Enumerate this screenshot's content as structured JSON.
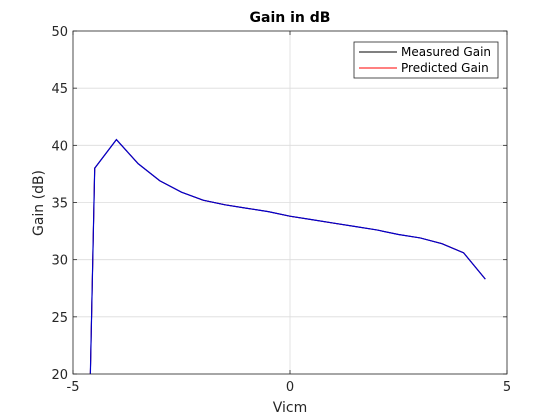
{
  "chart_data": {
    "type": "line",
    "title": "Gain in dB",
    "xlabel": "Vicm",
    "ylabel": "Gain (dB)",
    "xlim": [
      -5,
      5
    ],
    "ylim": [
      20,
      50
    ],
    "xticks": [
      -5,
      0,
      5
    ],
    "yticks": [
      20,
      25,
      30,
      35,
      40,
      45,
      50
    ],
    "grid": true,
    "legend_location": "top-right",
    "series": [
      {
        "name": "Measured Gain",
        "color": "#000000",
        "x": [
          -4.6,
          -4.5,
          -4.0,
          -3.5,
          -3.0,
          -2.5,
          -2.0,
          -1.5,
          -1.0,
          -0.5,
          0.0,
          0.5,
          1.0,
          1.5,
          2.0,
          2.5,
          3.0,
          3.5,
          4.0,
          4.5
        ],
        "y": [
          20.0,
          38.0,
          40.5,
          38.4,
          36.9,
          35.9,
          35.2,
          34.8,
          34.5,
          34.2,
          33.8,
          33.5,
          33.2,
          32.9,
          32.6,
          32.2,
          31.9,
          31.4,
          30.6,
          28.3
        ]
      },
      {
        "name": "Predicted Gain",
        "color": "#ff0000",
        "x": [
          -4.6,
          -4.5,
          -4.0,
          -3.5,
          -3.0,
          -2.5,
          -2.0,
          -1.5,
          -1.0,
          -0.5,
          0.0,
          0.5,
          1.0,
          1.5,
          2.0,
          2.5,
          3.0,
          3.5,
          4.0,
          4.5
        ],
        "y": [
          20.0,
          38.0,
          40.5,
          38.4,
          36.9,
          35.9,
          35.2,
          34.8,
          34.5,
          34.2,
          33.8,
          33.5,
          33.2,
          32.9,
          32.6,
          32.2,
          31.9,
          31.4,
          30.6,
          28.3
        ]
      }
    ],
    "overlap_line_color": "#0000cc"
  }
}
